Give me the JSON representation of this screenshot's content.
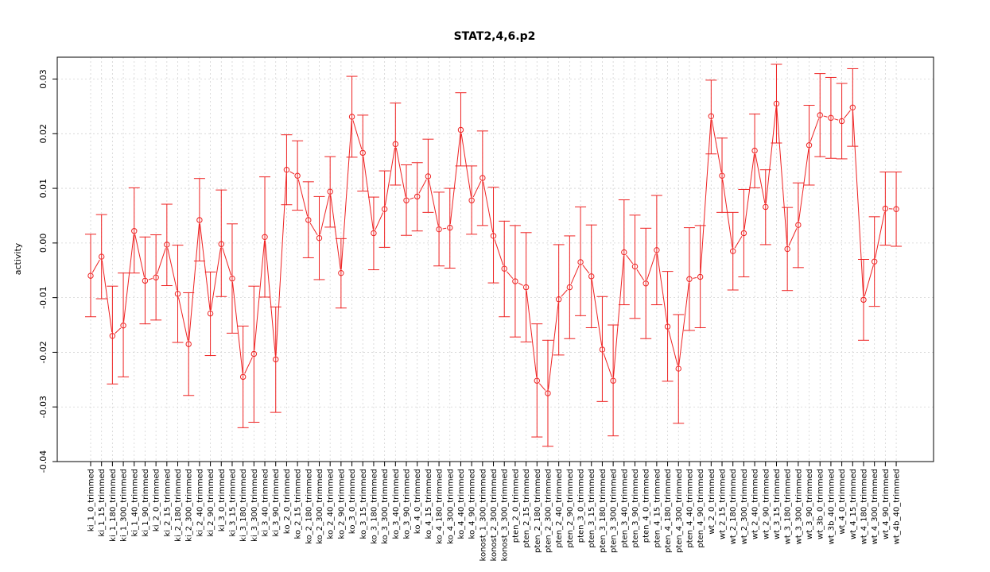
{
  "chart_data": {
    "type": "line",
    "title": "STAT2,4,6.p2",
    "xlabel": "",
    "ylabel": "activity",
    "ylim": [
      -0.04,
      0.034
    ],
    "yticks": [
      -0.04,
      -0.03,
      -0.02,
      -0.01,
      0.0,
      0.01,
      0.02,
      0.03
    ],
    "ytick_labels": [
      "-0.04",
      "-0.03",
      "-0.02",
      "-0.01",
      "0.00",
      "0.01",
      "0.02",
      "0.03"
    ],
    "grid": true,
    "color": "#ee2222",
    "categories": [
      "ki_1_0_trimmed",
      "ki_1_15_trimmed",
      "ki_1_180_trimmed",
      "ki_1_300_trimmed",
      "ki_1_40_trimmed",
      "ki_1_90_trimmed",
      "ki_2_0_trimmed",
      "ki_2_15_trimmed",
      "ki_2_180_trimmed",
      "ki_2_300_trimmed",
      "ki_2_40_trimmed",
      "ki_2_90_trimmed",
      "ki_3_0_trimmed",
      "ki_3_15_trimmed",
      "ki_3_180_trimmed",
      "ki_3_300_trimmed",
      "ki_3_40_trimmed",
      "ki_3_90_trimmed",
      "ko_2_0_trimmed",
      "ko_2_15_trimmed",
      "ko_2_180_trimmed",
      "ko_2_300_trimmed",
      "ko_2_40_trimmed",
      "ko_2_90_trimmed",
      "ko_3_0_trimmed",
      "ko_3_15_trimmed",
      "ko_3_180_trimmed",
      "ko_3_300_trimmed",
      "ko_3_40_trimmed",
      "ko_3_90_trimmed",
      "ko_4_0_trimmed",
      "ko_4_15_trimmed",
      "ko_4_180_trimmed",
      "ko_4_300_trimmed",
      "ko_4_40_trimmed",
      "ko_4_90_trimmed",
      "konost_1_300_trimmed",
      "konost_2_300_trimmed",
      "konost_3_300_trimmed",
      "pten_2_0_trimmed",
      "pten_2_15_trimmed",
      "pten_2_180_trimmed",
      "pten_2_300_trimmed",
      "pten_2_40_trimmed",
      "pten_2_90_trimmed",
      "pten_3_0_trimmed",
      "pten_3_15_trimmed",
      "pten_3_180_trimmed",
      "pten_3_300_trimmed",
      "pten_3_40_trimmed",
      "pten_3_90_trimmed",
      "pten_4_0_trimmed",
      "pten_4_15_trimmed",
      "pten_4_180_trimmed",
      "pten_4_300_trimmed",
      "pten_4_40_trimmed",
      "pten_4_90_trimmed",
      "wt_2_0_trimmed",
      "wt_2_15_trimmed",
      "wt_2_180_trimmed",
      "wt_2_300_trimmed",
      "wt_2_40_trimmed",
      "wt_2_90_trimmed",
      "wt_3_15_trimmed",
      "wt_3_180_trimmed",
      "wt_3_300_trimmed",
      "wt_3_90_trimmed",
      "wt_3b_0_trimmed",
      "wt_3b_40_trimmed",
      "wt_4_0_trimmed",
      "wt_4_15_trimmed",
      "wt_4_180_trimmed",
      "wt_4_300_trimmed",
      "wt_4_90_trimmed",
      "wt_4b_40_trimmed"
    ],
    "values": [
      -0.006,
      -0.0025,
      -0.017,
      -0.0151,
      0.0022,
      -0.0069,
      -0.0063,
      -0.0003,
      -0.0093,
      -0.0185,
      0.0042,
      -0.0129,
      -0.0002,
      -0.0065,
      -0.0245,
      -0.0203,
      0.0011,
      -0.0213,
      0.0134,
      0.0123,
      0.0042,
      0.0009,
      0.0094,
      -0.0055,
      0.0231,
      0.0165,
      0.0018,
      0.0062,
      0.0181,
      0.0078,
      0.0085,
      0.0122,
      0.0025,
      0.0028,
      0.0207,
      0.0078,
      0.0119,
      0.0013,
      -0.0047,
      -0.007,
      -0.0081,
      -0.0252,
      -0.0275,
      -0.0103,
      -0.0081,
      -0.0035,
      -0.0061,
      -0.0195,
      -0.0252,
      -0.0017,
      -0.0043,
      -0.0074,
      -0.0013,
      -0.0153,
      -0.023,
      -0.0066,
      -0.0062,
      0.0232,
      0.0123,
      -0.0015,
      0.0018,
      0.0169,
      0.0066,
      0.0255,
      -0.0011,
      0.0033,
      0.0179,
      0.0234,
      0.0229,
      0.0223,
      0.0248,
      -0.0104,
      -0.0034,
      0.0063,
      0.0062
    ],
    "err_lower": [
      -0.0135,
      -0.0102,
      -0.0258,
      -0.0245,
      -0.0055,
      -0.0148,
      -0.0141,
      -0.0078,
      -0.0182,
      -0.0279,
      -0.0033,
      -0.0206,
      -0.0098,
      -0.0165,
      -0.0338,
      -0.0328,
      -0.0099,
      -0.031,
      0.007,
      0.006,
      -0.0027,
      -0.0067,
      0.0029,
      -0.0119,
      0.0157,
      0.0095,
      -0.0049,
      -0.0008,
      0.0106,
      0.0014,
      0.0022,
      0.0056,
      -0.0042,
      -0.0046,
      0.0141,
      0.0016,
      0.0032,
      -0.0073,
      -0.0135,
      -0.0172,
      -0.0181,
      -0.0355,
      -0.0372,
      -0.0205,
      -0.0175,
      -0.0133,
      -0.0155,
      -0.029,
      -0.0353,
      -0.0113,
      -0.0138,
      -0.0175,
      -0.0113,
      -0.0253,
      -0.033,
      -0.016,
      -0.0155,
      0.0163,
      0.0056,
      -0.0086,
      -0.0062,
      0.0101,
      -0.0003,
      0.0183,
      -0.0087,
      -0.0045,
      0.0106,
      0.0158,
      0.0155,
      0.0154,
      0.0177,
      -0.0178,
      -0.0116,
      -0.0004,
      -0.0006
    ],
    "err_upper": [
      0.0016,
      0.0052,
      -0.0079,
      -0.0055,
      0.0101,
      0.0011,
      0.0015,
      0.0071,
      -0.0004,
      -0.0091,
      0.0118,
      -0.0053,
      0.0097,
      0.0035,
      -0.0152,
      -0.0079,
      0.0121,
      -0.0117,
      0.0198,
      0.0187,
      0.0112,
      0.0085,
      0.0158,
      0.0008,
      0.0305,
      0.0234,
      0.0084,
      0.0132,
      0.0256,
      0.0143,
      0.0147,
      0.019,
      0.0093,
      0.01,
      0.0275,
      0.0141,
      0.0205,
      0.0102,
      0.004,
      0.0032,
      0.0019,
      -0.0148,
      -0.0178,
      -0.0003,
      0.0013,
      0.0066,
      0.0033,
      -0.0098,
      -0.015,
      0.0079,
      0.0051,
      0.0027,
      0.0087,
      -0.0052,
      -0.0131,
      0.0028,
      0.0032,
      0.0298,
      0.0192,
      0.0056,
      0.0098,
      0.0236,
      0.0134,
      0.0327,
      0.0065,
      0.011,
      0.0252,
      0.031,
      0.0303,
      0.0292,
      0.0319,
      -0.003,
      0.0048,
      0.013,
      0.013
    ]
  }
}
